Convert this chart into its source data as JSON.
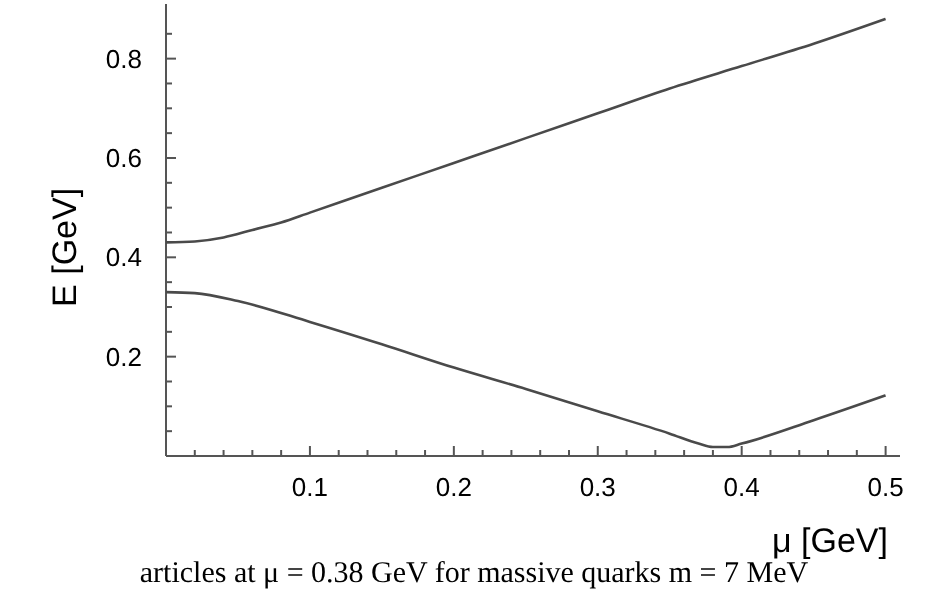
{
  "chart_data": {
    "type": "line",
    "xlabel": "μ  [GeV]",
    "ylabel": "E  [GeV]",
    "xlim": [
      0,
      0.51
    ],
    "ylim": [
      0,
      0.91
    ],
    "xticks": [
      {
        "value": 0.02,
        "label": null
      },
      {
        "value": 0.04,
        "label": null
      },
      {
        "value": 0.06,
        "label": null
      },
      {
        "value": 0.08,
        "label": null
      },
      0.1,
      {
        "value": 0.12,
        "label": null
      },
      {
        "value": 0.14,
        "label": null
      },
      {
        "value": 0.16,
        "label": null
      },
      {
        "value": 0.18,
        "label": null
      },
      0.2,
      {
        "value": 0.22,
        "label": null
      },
      {
        "value": 0.24,
        "label": null
      },
      {
        "value": 0.26,
        "label": null
      },
      {
        "value": 0.28,
        "label": null
      },
      0.3,
      {
        "value": 0.32,
        "label": null
      },
      {
        "value": 0.34,
        "label": null
      },
      {
        "value": 0.36,
        "label": null
      },
      {
        "value": 0.38,
        "label": null
      },
      0.4,
      {
        "value": 0.42,
        "label": null
      },
      {
        "value": 0.44,
        "label": null
      },
      {
        "value": 0.46,
        "label": null
      },
      {
        "value": 0.48,
        "label": null
      },
      0.5
    ],
    "yticks": [
      {
        "value": 0.05,
        "label": null
      },
      {
        "value": 0.1,
        "label": null
      },
      {
        "value": 0.15,
        "label": null
      },
      0.2,
      {
        "value": 0.25,
        "label": null
      },
      {
        "value": 0.3,
        "label": null
      },
      {
        "value": 0.35,
        "label": null
      },
      0.4,
      {
        "value": 0.45,
        "label": null
      },
      {
        "value": 0.5,
        "label": null
      },
      {
        "value": 0.55,
        "label": null
      },
      0.6,
      {
        "value": 0.65,
        "label": null
      },
      {
        "value": 0.7,
        "label": null
      },
      {
        "value": 0.75,
        "label": null
      },
      0.8,
      {
        "value": 0.85,
        "label": null
      }
    ],
    "marker": "none",
    "line_style": "solid",
    "annotations": [
      "articles at μ = 0.38 GeV for massive quarks m = 7 MeV"
    ],
    "series": [
      {
        "color": "#4a4a4a",
        "x": [
          0,
          0.02,
          0.04,
          0.06,
          0.08,
          0.1,
          0.15,
          0.2,
          0.25,
          0.3,
          0.35,
          0.4,
          0.45,
          0.5
        ],
        "values": [
          0.43,
          0.432,
          0.44,
          0.455,
          0.47,
          0.49,
          0.54,
          0.59,
          0.64,
          0.69,
          0.74,
          0.785,
          0.83,
          0.88
        ]
      },
      {
        "color": "#4a4a4a",
        "x": [
          0,
          0.02,
          0.05,
          0.1,
          0.15,
          0.2,
          0.25,
          0.3,
          0.35,
          0.37,
          0.38,
          0.39,
          0.4,
          0.45,
          0.5
        ],
        "values": [
          0.33,
          0.328,
          0.312,
          0.27,
          0.225,
          0.178,
          0.135,
          0.09,
          0.045,
          0.025,
          0.018,
          0.018,
          0.025,
          0.072,
          0.122
        ]
      }
    ]
  }
}
